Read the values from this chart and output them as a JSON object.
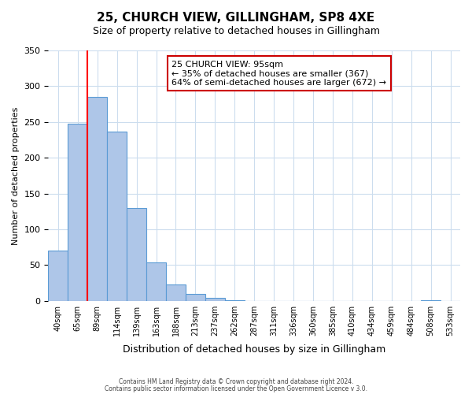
{
  "title": "25, CHURCH VIEW, GILLINGHAM, SP8 4XE",
  "subtitle": "Size of property relative to detached houses in Gillingham",
  "xlabel": "Distribution of detached houses by size in Gillingham",
  "ylabel": "Number of detached properties",
  "bar_values": [
    70,
    247,
    285,
    236,
    130,
    54,
    23,
    10,
    4,
    1,
    0,
    0,
    0,
    0,
    0,
    0,
    0,
    0,
    0,
    1,
    0
  ],
  "x_labels": [
    "40sqm",
    "65sqm",
    "89sqm",
    "114sqm",
    "139sqm",
    "163sqm",
    "188sqm",
    "213sqm",
    "237sqm",
    "262sqm",
    "287sqm",
    "311sqm",
    "336sqm",
    "360sqm",
    "385sqm",
    "410sqm",
    "434sqm",
    "459sqm",
    "484sqm",
    "508sqm",
    "533sqm"
  ],
  "bar_color": "#aec6e8",
  "bar_edge_color": "#5b9bd5",
  "ylim": [
    0,
    350
  ],
  "yticks": [
    0,
    50,
    100,
    150,
    200,
    250,
    300,
    350
  ],
  "red_line_x": 2,
  "annotation_title": "25 CHURCH VIEW: 95sqm",
  "annotation_line1": "← 35% of detached houses are smaller (367)",
  "annotation_line2": "64% of semi-detached houses are larger (672) →",
  "annotation_box_color": "#ffffff",
  "annotation_box_edge_color": "#cc0000",
  "footer1": "Contains HM Land Registry data © Crown copyright and database right 2024.",
  "footer2": "Contains public sector information licensed under the Open Government Licence v 3.0."
}
